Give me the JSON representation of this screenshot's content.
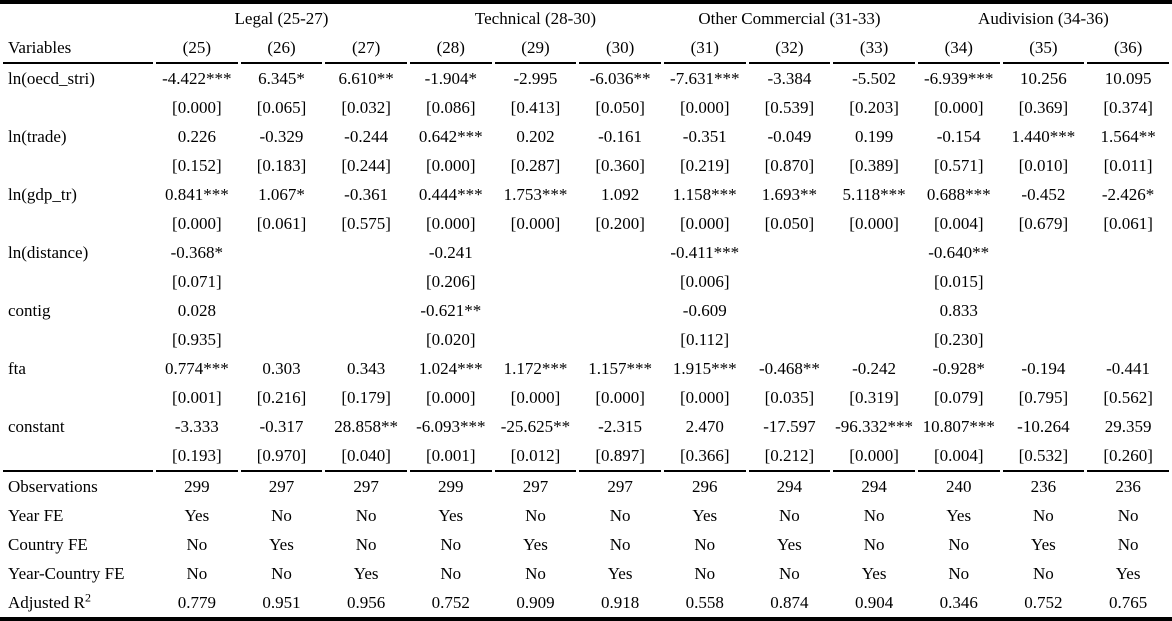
{
  "table": {
    "variables_header": "Variables",
    "groups": [
      {
        "label": "Legal (25-27)"
      },
      {
        "label": "Technical (28-30)"
      },
      {
        "label": "Other Commercial (31-33)"
      },
      {
        "label": "Audivision (34-36)"
      }
    ],
    "columns": [
      "(25)",
      "(26)",
      "(27)",
      "(28)",
      "(29)",
      "(30)",
      "(31)",
      "(32)",
      "(33)",
      "(34)",
      "(35)",
      "(36)"
    ],
    "rows": [
      {
        "variable": "ln(oecd_stri)",
        "coefs": [
          "-4.422***",
          "6.345*",
          "6.610**",
          "-1.904*",
          "-2.995",
          "-6.036**",
          "-7.631***",
          "-3.384",
          "-5.502",
          "-6.939***",
          "10.256",
          "10.095"
        ],
        "pvalues": [
          "[0.000]",
          "[0.065]",
          "[0.032]",
          "[0.086]",
          "[0.413]",
          "[0.050]",
          "[0.000]",
          "[0.539]",
          "[0.203]",
          "[0.000]",
          "[0.369]",
          "[0.374]"
        ]
      },
      {
        "variable": "ln(trade)",
        "coefs": [
          "0.226",
          "-0.329",
          "-0.244",
          "0.642***",
          "0.202",
          "-0.161",
          "-0.351",
          "-0.049",
          "0.199",
          "-0.154",
          "1.440***",
          "1.564**"
        ],
        "pvalues": [
          "[0.152]",
          "[0.183]",
          "[0.244]",
          "[0.000]",
          "[0.287]",
          "[0.360]",
          "[0.219]",
          "[0.870]",
          "[0.389]",
          "[0.571]",
          "[0.010]",
          "[0.011]"
        ]
      },
      {
        "variable": "ln(gdp_tr)",
        "coefs": [
          "0.841***",
          "1.067*",
          "-0.361",
          "0.444***",
          "1.753***",
          "1.092",
          "1.158***",
          "1.693**",
          "5.118***",
          "0.688***",
          "-0.452",
          "-2.426*"
        ],
        "pvalues": [
          "[0.000]",
          "[0.061]",
          "[0.575]",
          "[0.000]",
          "[0.000]",
          "[0.200]",
          "[0.000]",
          "[0.050]",
          "[0.000]",
          "[0.004]",
          "[0.679]",
          "[0.061]"
        ]
      },
      {
        "variable": "ln(distance)",
        "coefs": [
          "-0.368*",
          "",
          "",
          "-0.241",
          "",
          "",
          "-0.411***",
          "",
          "",
          "-0.640**",
          "",
          ""
        ],
        "pvalues": [
          "[0.071]",
          "",
          "",
          "[0.206]",
          "",
          "",
          "[0.006]",
          "",
          "",
          "[0.015]",
          "",
          ""
        ]
      },
      {
        "variable": "contig",
        "coefs": [
          "0.028",
          "",
          "",
          "-0.621**",
          "",
          "",
          "-0.609",
          "",
          "",
          "0.833",
          "",
          ""
        ],
        "pvalues": [
          "[0.935]",
          "",
          "",
          "[0.020]",
          "",
          "",
          "[0.112]",
          "",
          "",
          "[0.230]",
          "",
          ""
        ]
      },
      {
        "variable": "fta",
        "coefs": [
          "0.774***",
          "0.303",
          "0.343",
          "1.024***",
          "1.172***",
          "1.157***",
          "1.915***",
          "-0.468**",
          "-0.242",
          "-0.928*",
          "-0.194",
          "-0.441"
        ],
        "pvalues": [
          "[0.001]",
          "[0.216]",
          "[0.179]",
          "[0.000]",
          "[0.000]",
          "[0.000]",
          "[0.000]",
          "[0.035]",
          "[0.319]",
          "[0.079]",
          "[0.795]",
          "[0.562]"
        ]
      },
      {
        "variable": "constant",
        "coefs": [
          "-3.333",
          "-0.317",
          "28.858**",
          "-6.093***",
          "-25.625**",
          "-2.315",
          "2.470",
          "-17.597",
          "-96.332***",
          "10.807***",
          "-10.264",
          "29.359"
        ],
        "pvalues": [
          "[0.193]",
          "[0.970]",
          "[0.040]",
          "[0.001]",
          "[0.012]",
          "[0.897]",
          "[0.366]",
          "[0.212]",
          "[0.000]",
          "[0.004]",
          "[0.532]",
          "[0.260]"
        ]
      }
    ],
    "summary": [
      {
        "label": "Observations",
        "values": [
          "299",
          "297",
          "297",
          "299",
          "297",
          "297",
          "296",
          "294",
          "294",
          "240",
          "236",
          "236"
        ]
      },
      {
        "label": "Year FE",
        "values": [
          "Yes",
          "No",
          "No",
          "Yes",
          "No",
          "No",
          "Yes",
          "No",
          "No",
          "Yes",
          "No",
          "No"
        ]
      },
      {
        "label": "Country FE",
        "values": [
          "No",
          "Yes",
          "No",
          "No",
          "Yes",
          "No",
          "No",
          "Yes",
          "No",
          "No",
          "Yes",
          "No"
        ]
      },
      {
        "label": "Year-Country FE",
        "values": [
          "No",
          "No",
          "Yes",
          "No",
          "No",
          "Yes",
          "No",
          "No",
          "Yes",
          "No",
          "No",
          "Yes"
        ]
      },
      {
        "label": "Adjusted R",
        "sup": "2",
        "values": [
          "0.779",
          "0.951",
          "0.956",
          "0.752",
          "0.909",
          "0.918",
          "0.558",
          "0.874",
          "0.904",
          "0.346",
          "0.752",
          "0.765"
        ]
      }
    ]
  }
}
